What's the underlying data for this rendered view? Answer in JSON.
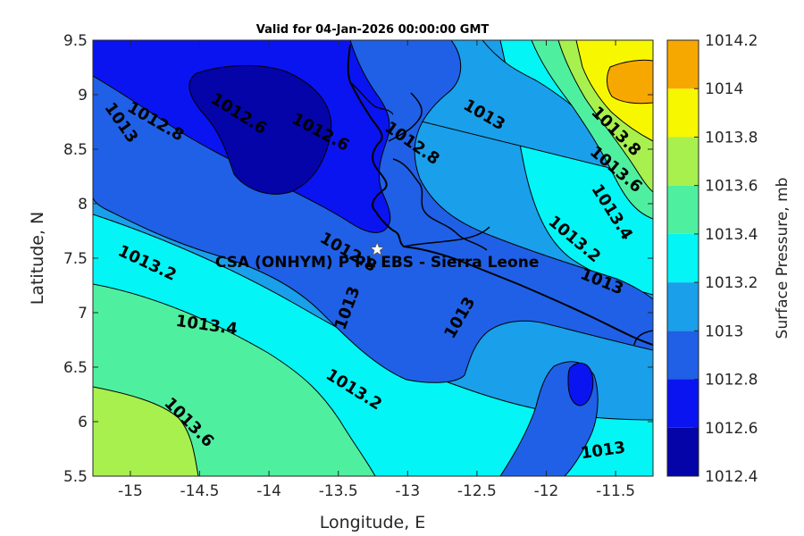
{
  "chart_data": {
    "type": "contour",
    "title": "Valid for 04-Jan-2026 00:00:00 GMT",
    "xlabel": "Longitude, E",
    "ylabel": "Latitude, N",
    "xlim": [
      -15.27,
      -11.23
    ],
    "ylim": [
      5.5,
      9.5
    ],
    "xticks": [
      "-15",
      "-14.5",
      "-14",
      "-13.5",
      "-13",
      "-12.5",
      "-12",
      "-11.5"
    ],
    "yticks": [
      "5.5",
      "6",
      "6.5",
      "7",
      "7.5",
      "8",
      "8.5",
      "9",
      "9.5"
    ],
    "colorbar": {
      "label": "Surface Pressure, mb",
      "ticks": [
        "1012.4",
        "1012.6",
        "1012.8",
        "1013",
        "1013.2",
        "1013.4",
        "1013.6",
        "1013.8",
        "1014",
        "1014.2"
      ],
      "levels": [
        1012.4,
        1012.6,
        1012.8,
        1013.0,
        1013.2,
        1013.4,
        1013.6,
        1013.8,
        1014.0,
        1014.2
      ],
      "colors": [
        "#0404a8",
        "#0a14f0",
        "#1f60e6",
        "#1a9fea",
        "#03f5f5",
        "#4ef0a0",
        "#a8f04e",
        "#f7f700",
        "#f7a800",
        "#fa5000"
      ]
    },
    "contour_labels": [
      {
        "text": "1012.6",
        "lon": -14.22,
        "lat": 8.82
      },
      {
        "text": "1012.6",
        "lon": -13.63,
        "lat": 8.65
      },
      {
        "text": "1012.8",
        "lon": -14.82,
        "lat": 8.75
      },
      {
        "text": "1012.8",
        "lon": -12.97,
        "lat": 8.55
      },
      {
        "text": "1012.8",
        "lon": -13.43,
        "lat": 7.55
      },
      {
        "text": "1013",
        "lon": -15.07,
        "lat": 8.74
      },
      {
        "text": "1013",
        "lon": -12.45,
        "lat": 8.81
      },
      {
        "text": "1013",
        "lon": -13.43,
        "lat": 7.04
      },
      {
        "text": "1013",
        "lon": -12.62,
        "lat": 6.95
      },
      {
        "text": "1013",
        "lon": -11.6,
        "lat": 7.28
      },
      {
        "text": "1013",
        "lon": -11.59,
        "lat": 5.73
      },
      {
        "text": "1013.2",
        "lon": -14.88,
        "lat": 7.45
      },
      {
        "text": "1013.2",
        "lon": -13.39,
        "lat": 6.29
      },
      {
        "text": "1013.2",
        "lon": -11.8,
        "lat": 7.67
      },
      {
        "text": "1013.4",
        "lon": -14.45,
        "lat": 6.88
      },
      {
        "text": "1013.4",
        "lon": -11.53,
        "lat": 7.92
      },
      {
        "text": "1013.6",
        "lon": -14.58,
        "lat": 5.99
      },
      {
        "text": "1013.6",
        "lon": -11.5,
        "lat": 8.31
      },
      {
        "text": "1013.8",
        "lon": -11.5,
        "lat": 8.66
      }
    ],
    "site": {
      "name": "CSA (ONHYM) P PL EBS  - Sierra Leone",
      "lon": -13.22,
      "lat": 7.58
    }
  }
}
